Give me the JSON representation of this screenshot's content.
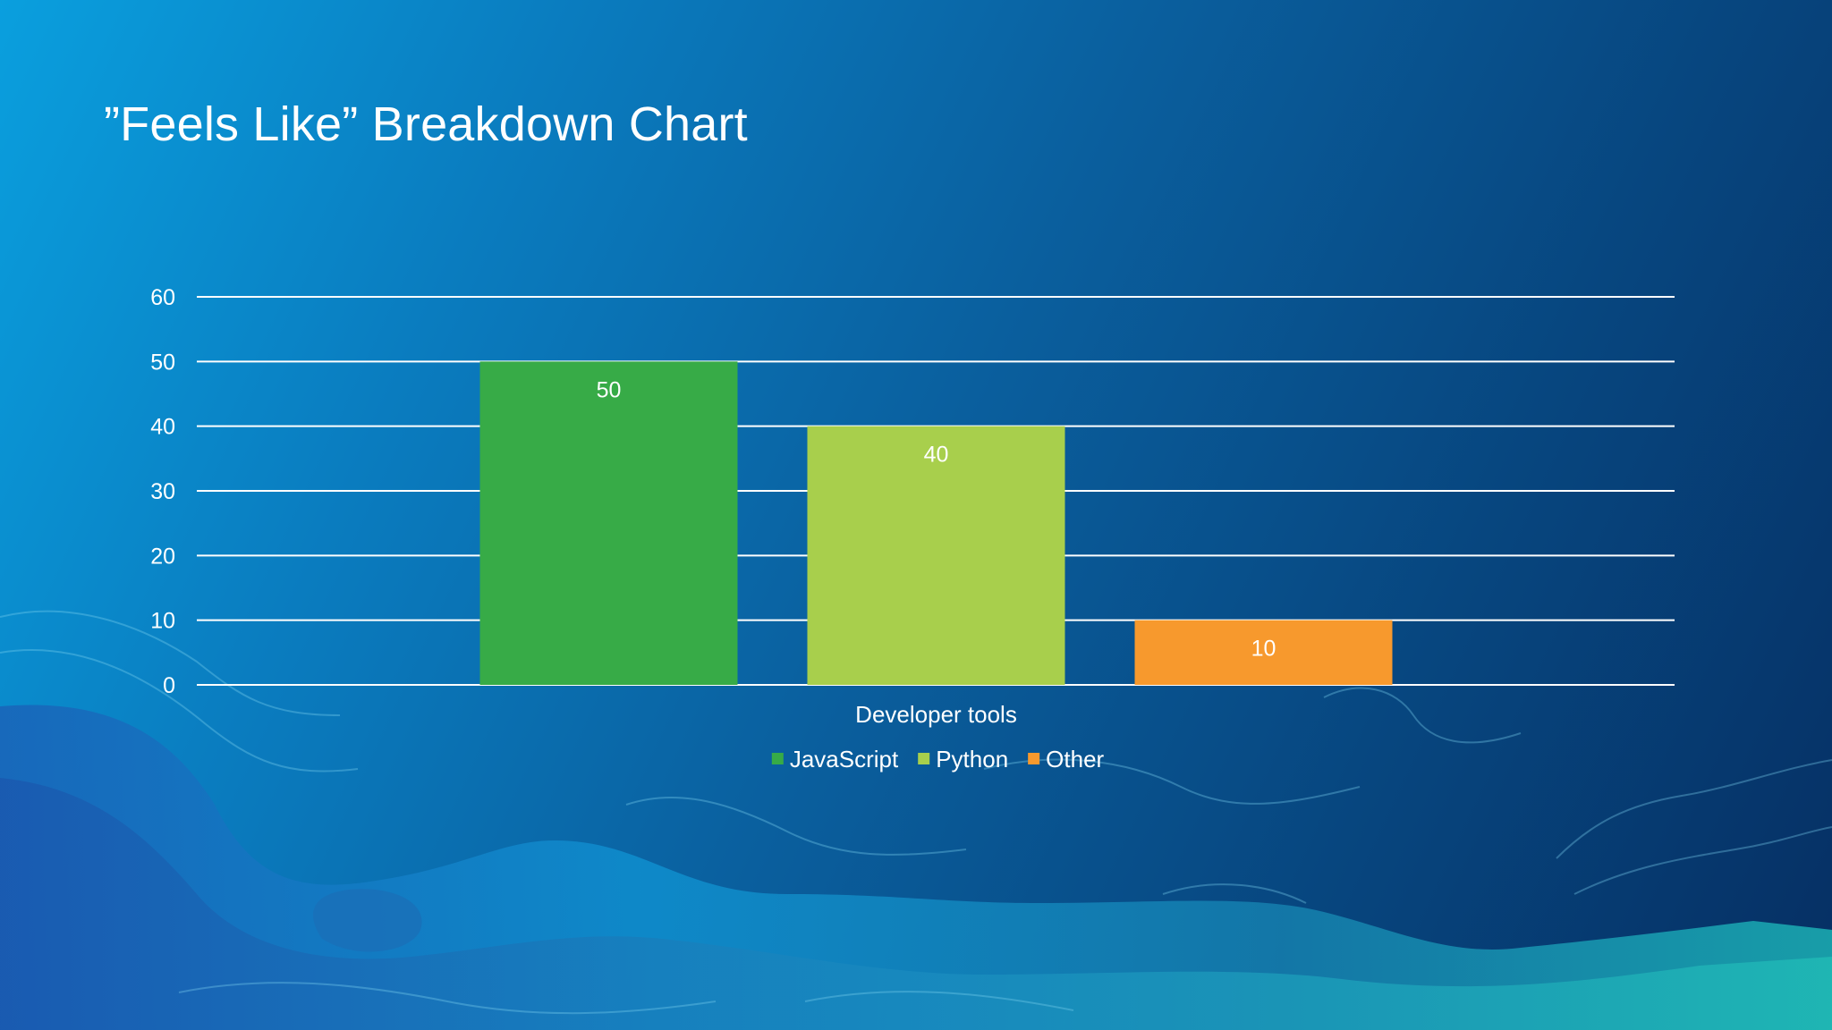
{
  "slide": {
    "title": "”Feels Like” Breakdown Chart"
  },
  "chart_data": {
    "type": "bar",
    "categories": [
      "Developer tools"
    ],
    "series": [
      {
        "name": "JavaScript",
        "values": [
          50
        ],
        "color": "#37ab47"
      },
      {
        "name": "Python",
        "values": [
          40
        ],
        "color": "#a8cf4c"
      },
      {
        "name": "Other",
        "values": [
          10
        ],
        "color": "#f7992d"
      }
    ],
    "ylim": [
      0,
      60
    ],
    "yticks": [
      0,
      10,
      20,
      30,
      40,
      50,
      60
    ],
    "grid": true,
    "data_labels": true,
    "legend": "bottom"
  }
}
